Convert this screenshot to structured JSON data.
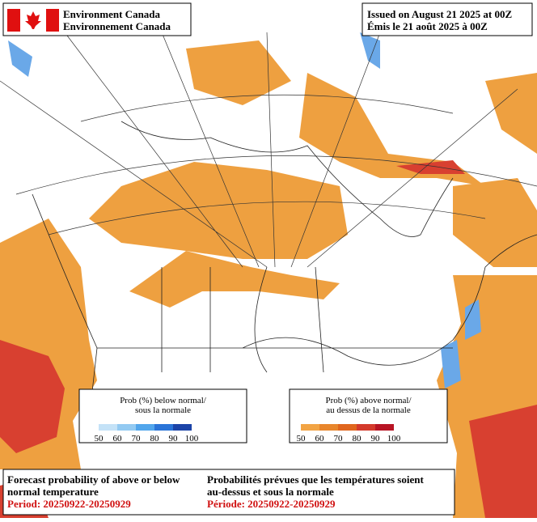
{
  "header": {
    "agency_en": "Environment Canada",
    "agency_fr": "Environnement Canada",
    "issued_en": "Issued on August 21 2025 at 00Z",
    "issued_fr": "Émis le 21 août 2025 à 00Z"
  },
  "legends": [
    {
      "title_1": "Prob (%) below normal/",
      "title_2": "sous la normale",
      "ticks": [
        50,
        60,
        70,
        80,
        90,
        100
      ],
      "colors": [
        "#c4e2f7",
        "#93caf2",
        "#52a6ec",
        "#2a74d8",
        "#1c44a8"
      ]
    },
    {
      "title_1": "Prob (%) above normal/",
      "title_2": "au dessus de la normale",
      "ticks": [
        50,
        60,
        70,
        80,
        90,
        100
      ],
      "colors": [
        "#f2a444",
        "#e8862c",
        "#e0661e",
        "#d43a2c",
        "#b81424"
      ]
    }
  ],
  "footer": {
    "title_en_1": "Forecast probability of above or below",
    "title_en_2": "normal temperature",
    "period_en": "Period: 20250922-20250929",
    "title_fr_1": "Probabilités prévues que les températures soient",
    "title_fr_2": "au-dessus et sous la normale",
    "period_fr": "Période: 20250922-20250929"
  }
}
